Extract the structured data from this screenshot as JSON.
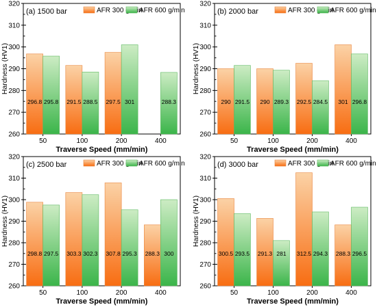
{
  "chart_data": [
    {
      "type": "bar",
      "panel_label": "(a) 1500 bar",
      "categories": [
        "50",
        "100",
        "200",
        "400"
      ],
      "series": [
        {
          "name": "AFR 300 g/min",
          "values": [
            296.8,
            291.5,
            297.5,
            null
          ],
          "labels": [
            "296.8",
            "291.5",
            "297.5",
            ""
          ]
        },
        {
          "name": "AFR 600 g/min",
          "values": [
            295.8,
            288.5,
            301,
            288.3
          ],
          "labels": [
            "295.8",
            "288.5",
            "301",
            "288.3"
          ]
        }
      ],
      "xlabel": "Traverse Speed (mm/min)",
      "ylabel": "Hardness (HV1)",
      "ylim": [
        260,
        320
      ],
      "yticks": [
        "260",
        "270",
        "280",
        "290",
        "300",
        "310",
        "320"
      ],
      "legend": "top-right"
    },
    {
      "type": "bar",
      "panel_label": "(b) 2000 bar",
      "categories": [
        "50",
        "100",
        "200",
        "400"
      ],
      "series": [
        {
          "name": "AFR 300 g/min",
          "values": [
            290,
            290,
            292.5,
            301
          ],
          "labels": [
            "290",
            "290",
            "292.5",
            "301"
          ]
        },
        {
          "name": "AFR 600 g/min",
          "values": [
            291.5,
            289.3,
            284.5,
            296.8
          ],
          "labels": [
            "291.5",
            "289.3",
            "284.5",
            "296.8"
          ]
        }
      ],
      "xlabel": "Traverse Speed (mm/min)",
      "ylabel": "Hardness (HV1)",
      "ylim": [
        260,
        320
      ],
      "yticks": [
        "260",
        "270",
        "280",
        "290",
        "300",
        "310",
        "320"
      ],
      "legend": "top-right"
    },
    {
      "type": "bar",
      "panel_label": "(c) 2500 bar",
      "categories": [
        "50",
        "100",
        "200",
        "400"
      ],
      "series": [
        {
          "name": "AFR 300 g/min",
          "values": [
            298.8,
            303.3,
            307.8,
            288.3
          ],
          "labels": [
            "298.8",
            "303.3",
            "307.8",
            "288.3"
          ]
        },
        {
          "name": "AFR 600 g/min",
          "values": [
            297.5,
            302.3,
            295.3,
            300
          ],
          "labels": [
            "297.5",
            "302.3",
            "295.3",
            "300"
          ]
        }
      ],
      "xlabel": "Traverse Speed (mm/min)",
      "ylabel": "Hardness (HV1)",
      "ylim": [
        260,
        320
      ],
      "yticks": [
        "260",
        "270",
        "280",
        "290",
        "300",
        "310",
        "320"
      ],
      "legend": "top-right"
    },
    {
      "type": "bar",
      "panel_label": "(d) 3000 bar",
      "categories": [
        "50",
        "100",
        "200",
        "400"
      ],
      "series": [
        {
          "name": "AFR 300 g/min",
          "values": [
            300.5,
            291.3,
            312.5,
            288.3
          ],
          "labels": [
            "300.5",
            "291.3",
            "312.5",
            "288.3"
          ]
        },
        {
          "name": "AFR 600 g/min",
          "values": [
            293.5,
            281,
            294.3,
            296.5
          ],
          "labels": [
            "293.5",
            "281",
            "294.3",
            "296.5"
          ]
        }
      ],
      "xlabel": "Traverse Speed (mm/min)",
      "ylabel": "Hardness (HV1)",
      "ylim": [
        260,
        320
      ],
      "yticks": [
        "260",
        "270",
        "280",
        "290",
        "300",
        "310",
        "320"
      ],
      "legend": "top-right"
    }
  ],
  "colors": {
    "afr300_top": "#fbd2a6",
    "afr300_bottom": "#f86d12",
    "afr600_top": "#cdecc4",
    "afr600_bottom": "#3bb54a",
    "axis": "#000000"
  }
}
